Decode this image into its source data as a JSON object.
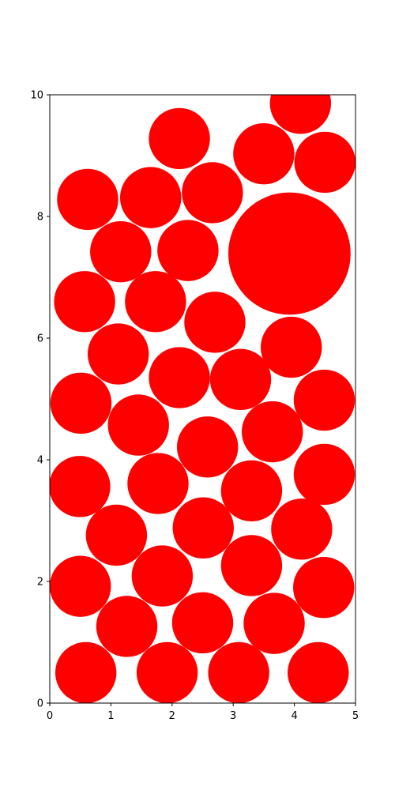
{
  "chart_data": {
    "type": "scatter",
    "title": "",
    "xlabel": "",
    "ylabel": "",
    "xlim": [
      0,
      5
    ],
    "ylim": [
      0,
      10
    ],
    "xticks": [
      "0",
      "1",
      "2",
      "3",
      "4",
      "5"
    ],
    "yticks": [
      "0",
      "2",
      "4",
      "6",
      "8",
      "10"
    ],
    "grid": false,
    "aspect": "equal",
    "fill_color": "#ff0000",
    "marker": "filled-circle",
    "series": [
      {
        "points": [
          {
            "x": 4.1,
            "y": 9.86,
            "r": 0.5
          },
          {
            "x": 2.12,
            "y": 9.28,
            "r": 0.5
          },
          {
            "x": 3.5,
            "y": 9.03,
            "r": 0.5
          },
          {
            "x": 4.5,
            "y": 8.89,
            "r": 0.5
          },
          {
            "x": 0.62,
            "y": 8.28,
            "r": 0.5
          },
          {
            "x": 1.65,
            "y": 8.31,
            "r": 0.5
          },
          {
            "x": 2.66,
            "y": 8.39,
            "r": 0.5
          },
          {
            "x": 3.92,
            "y": 7.39,
            "r": 1.0
          },
          {
            "x": 1.16,
            "y": 7.42,
            "r": 0.5
          },
          {
            "x": 2.26,
            "y": 7.44,
            "r": 0.5
          },
          {
            "x": 0.57,
            "y": 6.6,
            "r": 0.5
          },
          {
            "x": 1.73,
            "y": 6.6,
            "r": 0.5
          },
          {
            "x": 2.7,
            "y": 6.26,
            "r": 0.5
          },
          {
            "x": 3.95,
            "y": 5.85,
            "r": 0.5
          },
          {
            "x": 1.12,
            "y": 5.74,
            "r": 0.5
          },
          {
            "x": 2.12,
            "y": 5.35,
            "r": 0.5
          },
          {
            "x": 3.12,
            "y": 5.32,
            "r": 0.5
          },
          {
            "x": 0.51,
            "y": 4.93,
            "r": 0.5
          },
          {
            "x": 4.49,
            "y": 4.98,
            "r": 0.5
          },
          {
            "x": 1.45,
            "y": 4.57,
            "r": 0.5
          },
          {
            "x": 3.64,
            "y": 4.46,
            "r": 0.5
          },
          {
            "x": 2.58,
            "y": 4.21,
            "r": 0.5
          },
          {
            "x": 0.49,
            "y": 3.56,
            "r": 0.5
          },
          {
            "x": 1.77,
            "y": 3.61,
            "r": 0.5
          },
          {
            "x": 4.49,
            "y": 3.76,
            "r": 0.5
          },
          {
            "x": 3.3,
            "y": 3.49,
            "r": 0.5
          },
          {
            "x": 2.51,
            "y": 2.88,
            "r": 0.5
          },
          {
            "x": 4.12,
            "y": 2.86,
            "r": 0.5
          },
          {
            "x": 1.09,
            "y": 2.76,
            "r": 0.5
          },
          {
            "x": 3.3,
            "y": 2.26,
            "r": 0.5
          },
          {
            "x": 1.84,
            "y": 2.09,
            "r": 0.5
          },
          {
            "x": 0.5,
            "y": 1.92,
            "r": 0.5
          },
          {
            "x": 4.48,
            "y": 1.9,
            "r": 0.5
          },
          {
            "x": 1.26,
            "y": 1.26,
            "r": 0.5
          },
          {
            "x": 2.5,
            "y": 1.32,
            "r": 0.5
          },
          {
            "x": 3.67,
            "y": 1.31,
            "r": 0.5
          },
          {
            "x": 0.59,
            "y": 0.5,
            "r": 0.5
          },
          {
            "x": 1.92,
            "y": 0.5,
            "r": 0.5
          },
          {
            "x": 3.09,
            "y": 0.5,
            "r": 0.5
          },
          {
            "x": 4.39,
            "y": 0.5,
            "r": 0.5
          }
        ]
      }
    ]
  }
}
